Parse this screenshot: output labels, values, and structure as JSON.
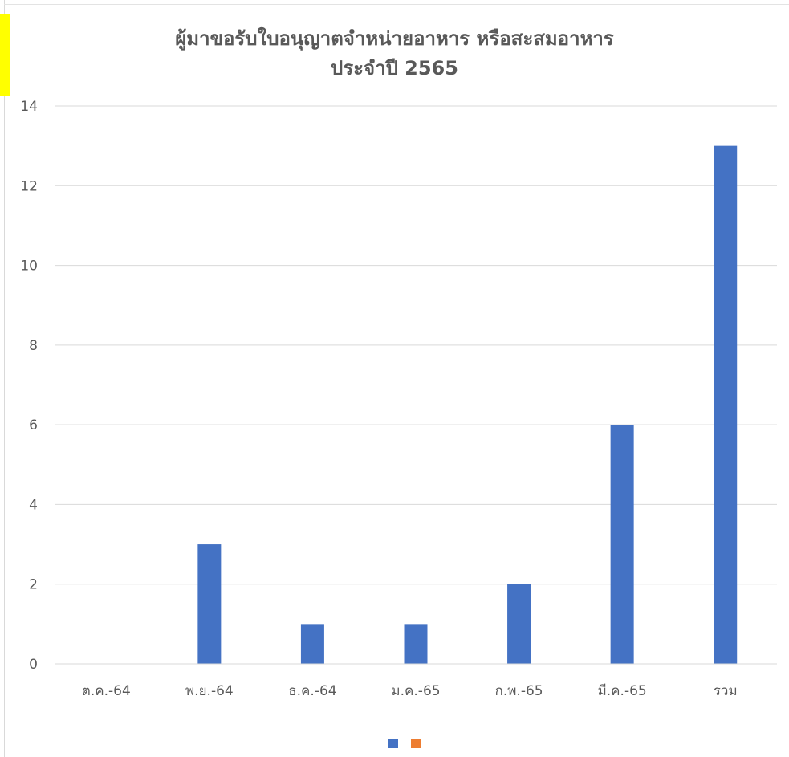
{
  "chart_data": {
    "type": "bar",
    "title_line1": "ผู้มาขอรับใบอนุญาตจำหน่ายอาหาร หรือสะสมอาหาร",
    "title_line2": "ประจำปี 2565",
    "categories": [
      "ต.ค.-64",
      "พ.ย.-64",
      "ธ.ค.-64",
      "ม.ค.-65",
      "ก.พ.-65",
      "มี.ค.-65",
      "รวม"
    ],
    "series": [
      {
        "values": [
          0,
          3,
          1,
          1,
          2,
          6,
          13
        ],
        "color": "#4472c4"
      },
      {
        "values": [
          null,
          null,
          null,
          null,
          null,
          null,
          null
        ],
        "color": "#ed7d31"
      }
    ],
    "y_ticks": [
      "0",
      "2",
      "4",
      "6",
      "8",
      "10",
      "12",
      "14"
    ],
    "ylim": [
      0,
      14
    ],
    "grid": true,
    "legend_position": "bottom"
  }
}
